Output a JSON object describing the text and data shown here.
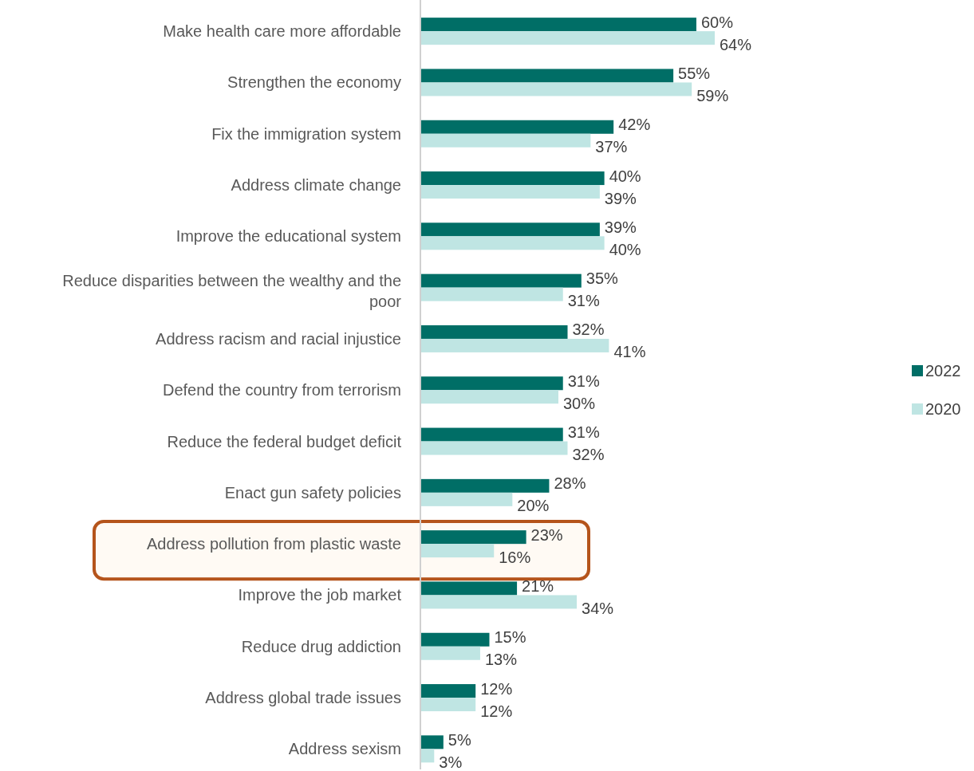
{
  "chart_data": {
    "type": "bar",
    "orientation": "horizontal",
    "legend": "right",
    "categories": [
      "Make health care more affordable",
      "Strengthen the economy",
      "Fix the immigration system",
      "Address climate change",
      "Improve the educational system",
      "Reduce disparities between the wealthy and the poor",
      "Address racism and racial injustice",
      "Defend the country from terrorism",
      "Reduce the federal budget deficit",
      "Enact gun safety policies",
      "Address pollution from plastic waste",
      "Improve the job market",
      "Reduce drug addiction",
      "Address global trade issues",
      "Address sexism"
    ],
    "series": [
      {
        "name": "2022",
        "color": "#006e66",
        "values": [
          60,
          55,
          42,
          40,
          39,
          35,
          32,
          31,
          31,
          28,
          23,
          21,
          15,
          12,
          5
        ],
        "value_labels": [
          "60%",
          "55%",
          "42%",
          "40%",
          "39%",
          "35%",
          "32%",
          "31%",
          "31%",
          "28%",
          "23%",
          "21%",
          "15%",
          "12%",
          "5%"
        ]
      },
      {
        "name": "2020",
        "color": "#bfe5e3",
        "values": [
          64,
          59,
          37,
          39,
          40,
          31,
          41,
          30,
          32,
          20,
          16,
          34,
          13,
          12,
          3
        ],
        "value_labels": [
          "64%",
          "59%",
          "37%",
          "39%",
          "40%",
          "31%",
          "41%",
          "30%",
          "32%",
          "20%",
          "16%",
          "34%",
          "13%",
          "12%",
          "3%"
        ]
      }
    ]
  }
}
